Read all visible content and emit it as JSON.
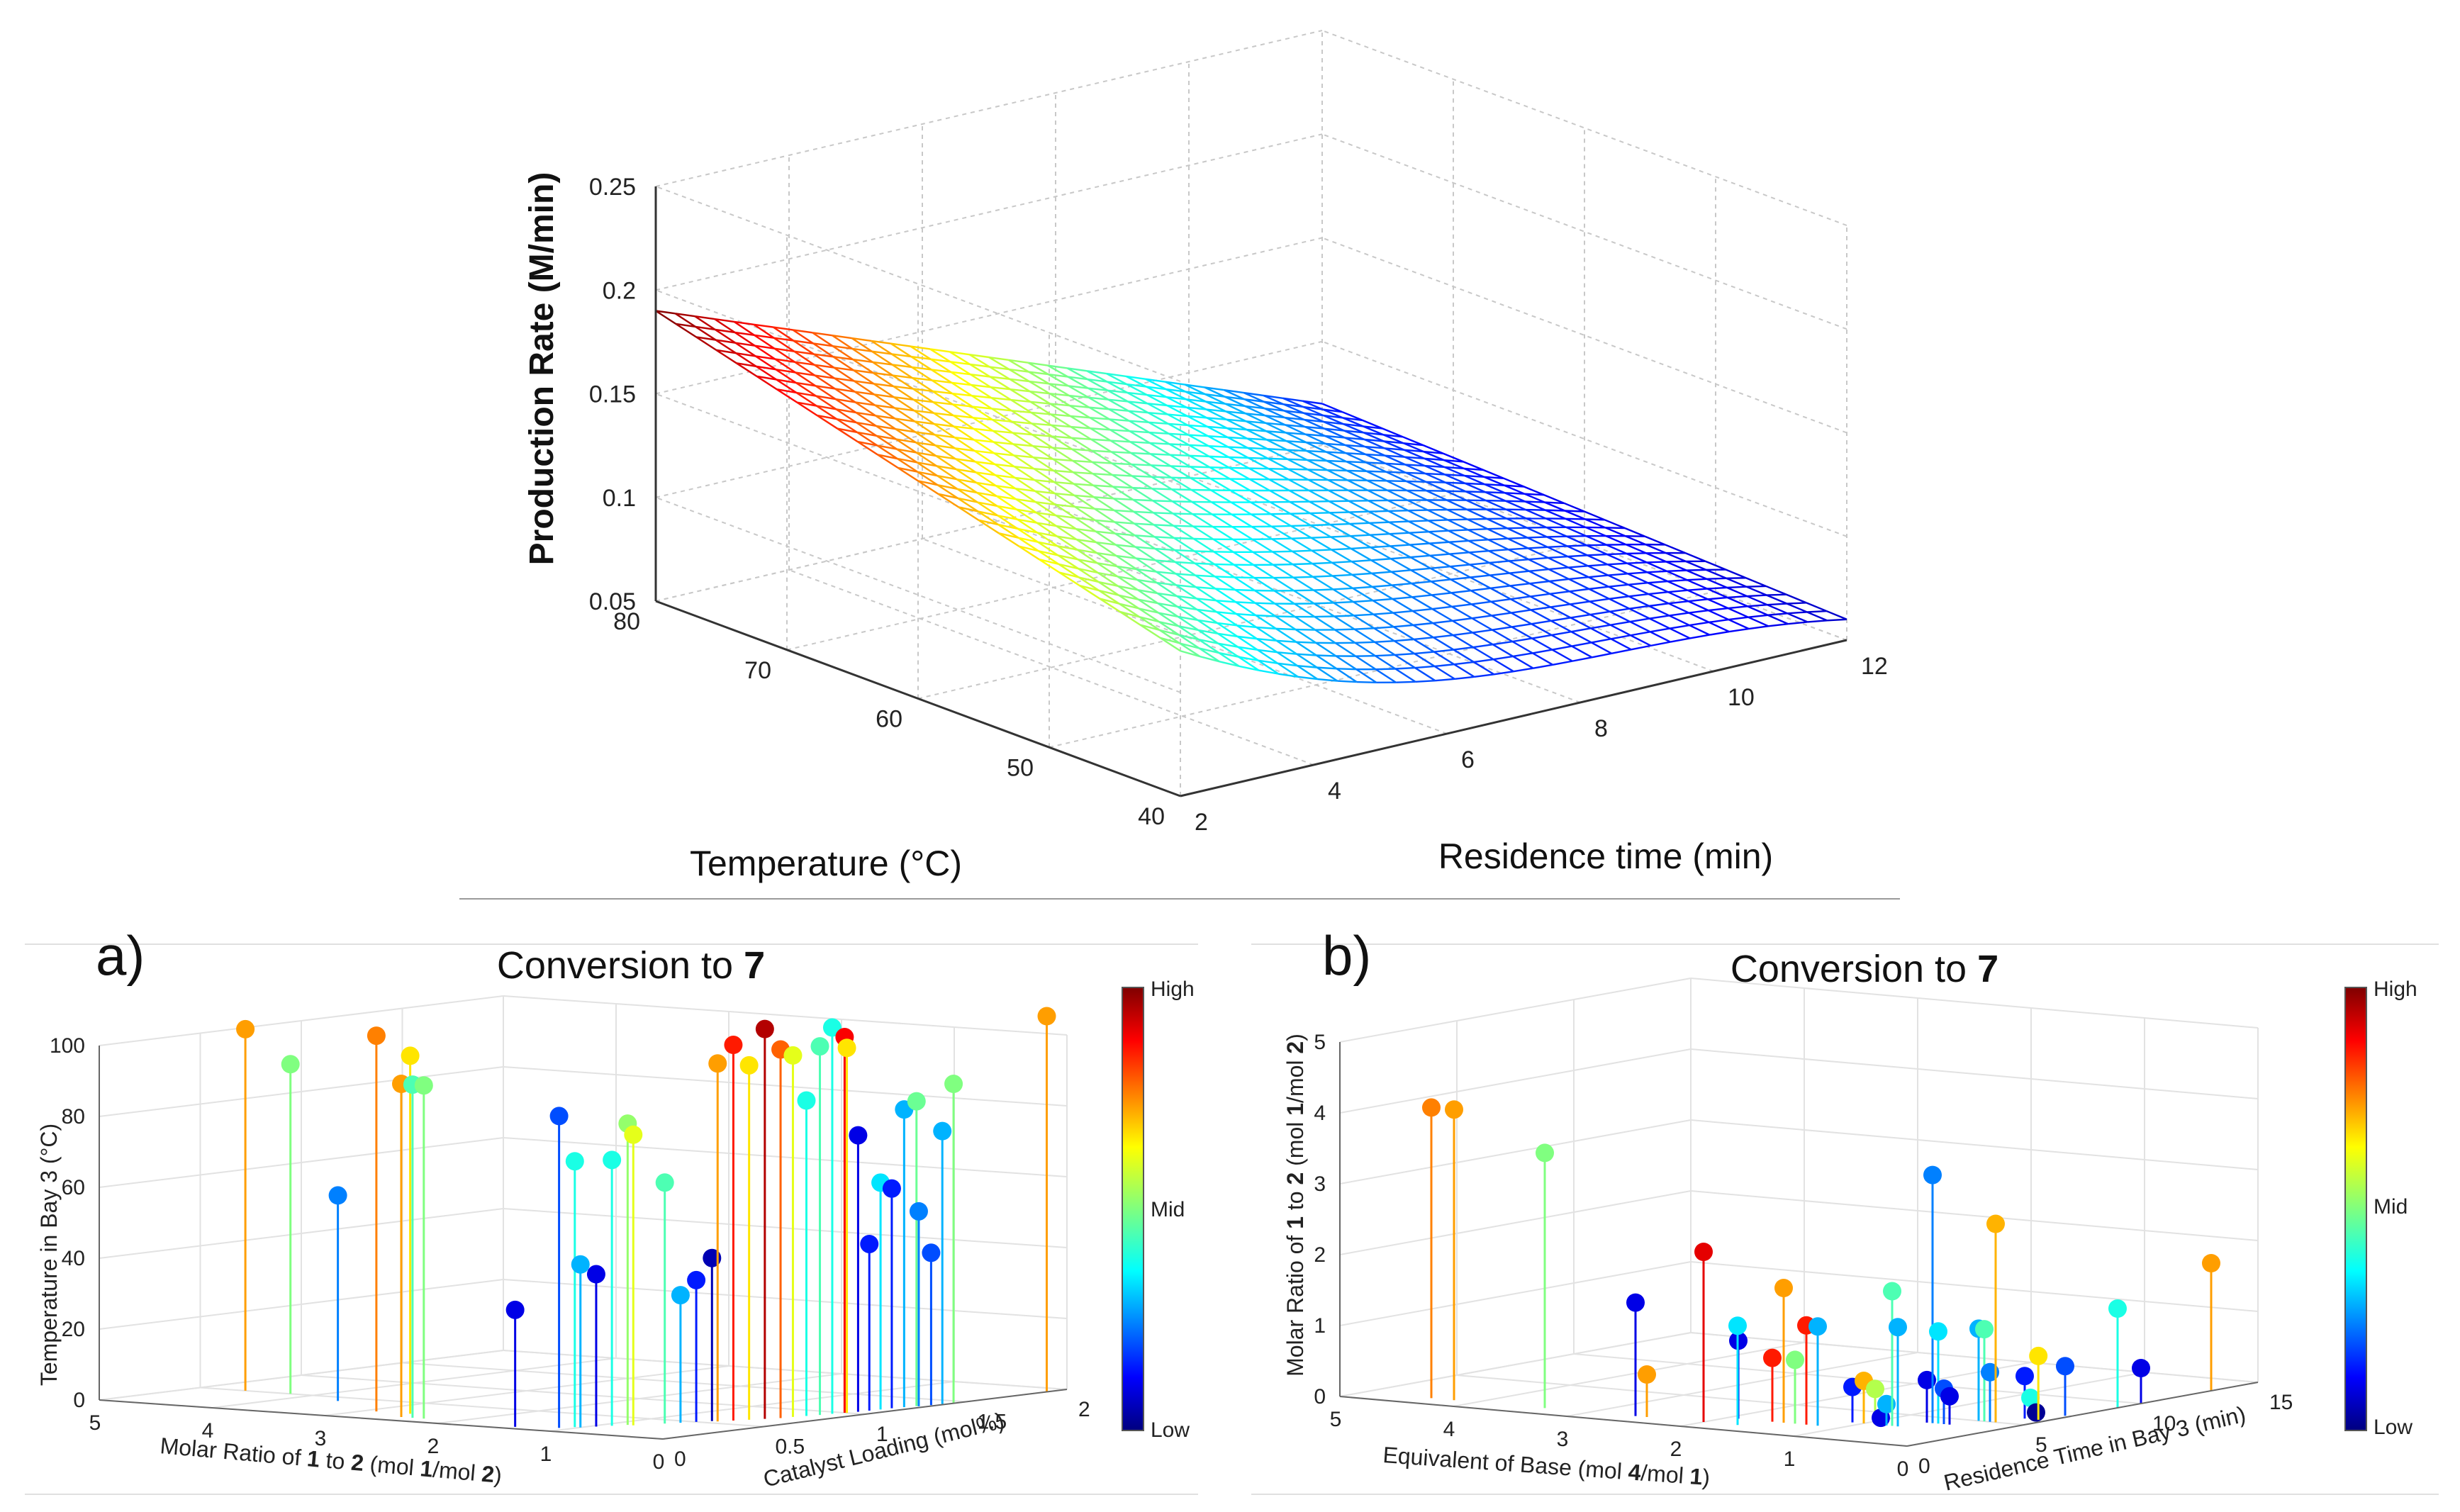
{
  "chart_data": [
    {
      "type": "surface",
      "panel_label": "",
      "title": "",
      "zlabel": "Production Rate (M/min)",
      "xlabel": "Residence time (min)",
      "ylabel": "Temperature (°C)",
      "z_ticks": [
        "0.05",
        "0.1",
        "0.15",
        "0.2",
        "0.25"
      ],
      "residence_ticks": [
        "2",
        "4",
        "6",
        "8",
        "10",
        "12"
      ],
      "temperature_ticks": [
        "40",
        "50",
        "60",
        "70",
        "80"
      ],
      "zlim": [
        0.05,
        0.25
      ],
      "xlim": [
        2,
        12
      ],
      "ylim": [
        40,
        80
      ],
      "grid": true,
      "surface_corners": [
        {
          "residence_time": 2,
          "temperature": 80,
          "rate": 0.19
        },
        {
          "residence_time": 2,
          "temperature": 40,
          "rate": 0.12
        },
        {
          "residence_time": 12,
          "temperature": 80,
          "rate": 0.07
        },
        {
          "residence_time": 12,
          "temperature": 40,
          "rate": 0.06
        }
      ],
      "colormap": "jet"
    },
    {
      "type": "scatter3d-stem",
      "panel_label": "a)",
      "title_prefix": "Conversion to ",
      "title_bold": "7",
      "zlabel": "Temperature in Bay 3 (°C)",
      "xlabel_parts": [
        "Molar Ratio of ",
        "1",
        " to ",
        "2",
        " (mol ",
        "1",
        "/mol ",
        "2",
        ")"
      ],
      "ylabel": "Catalyst Loading (mol%)",
      "z_ticks": [
        "0",
        "20",
        "40",
        "60",
        "80",
        "100"
      ],
      "molar_ratio_ticks": [
        "5",
        "4",
        "3",
        "2",
        "1",
        "0"
      ],
      "catalyst_ticks": [
        "0",
        "0.5",
        "1",
        "1.5",
        "2"
      ],
      "zlim": [
        0,
        100
      ],
      "colorbar": {
        "high": "High",
        "mid": "Mid",
        "low": "Low"
      },
      "points": [
        {
          "molar_ratio": 4.6,
          "catalyst": 0.5,
          "temperature": 102,
          "conversion": 0.72
        },
        {
          "molar_ratio": 4.2,
          "catalyst": 0.5,
          "temperature": 93,
          "conversion": 0.5
        },
        {
          "molar_ratio": 3.6,
          "catalyst": 0.4,
          "temperature": 58,
          "conversion": 0.25
        },
        {
          "molar_ratio": 2.9,
          "catalyst": 0.2,
          "temperature": 106,
          "conversion": 0.75
        },
        {
          "molar_ratio": 2.6,
          "catalyst": 0.2,
          "temperature": 101,
          "conversion": 0.65
        },
        {
          "molar_ratio": 2.5,
          "catalyst": 0.1,
          "temperature": 94,
          "conversion": 0.72
        },
        {
          "molar_ratio": 2.4,
          "catalyst": 0.1,
          "temperature": 94,
          "conversion": 0.45
        },
        {
          "molar_ratio": 2.3,
          "catalyst": 0.1,
          "temperature": 94,
          "conversion": 0.5
        },
        {
          "molar_ratio": 1.4,
          "catalyst": 0.05,
          "temperature": 33,
          "conversion": 0.1
        },
        {
          "molar_ratio": 1.1,
          "catalyst": 0.1,
          "temperature": 88,
          "conversion": 0.2
        },
        {
          "molar_ratio": 1.05,
          "catalyst": 0.15,
          "temperature": 75,
          "conversion": 0.4
        },
        {
          "molar_ratio": 1.0,
          "catalyst": 0.15,
          "temperature": 46,
          "conversion": 0.3
        },
        {
          "molar_ratio": 0.95,
          "catalyst": 0.2,
          "temperature": 43,
          "conversion": 0.1
        },
        {
          "molar_ratio": 0.9,
          "catalyst": 0.25,
          "temperature": 75,
          "conversion": 0.4
        },
        {
          "molar_ratio": 0.85,
          "catalyst": 0.3,
          "temperature": 85,
          "conversion": 0.52
        },
        {
          "molar_ratio": 0.8,
          "catalyst": 0.3,
          "temperature": 82,
          "conversion": 0.6
        },
        {
          "molar_ratio": 0.7,
          "catalyst": 0.4,
          "temperature": 68,
          "conversion": 0.45
        },
        {
          "molar_ratio": 0.65,
          "catalyst": 0.45,
          "temperature": 36,
          "conversion": 0.3
        },
        {
          "molar_ratio": 0.6,
          "catalyst": 0.5,
          "temperature": 40,
          "conversion": 0.15
        },
        {
          "molar_ratio": 0.55,
          "catalyst": 0.55,
          "temperature": 46,
          "conversion": 0.05
        },
        {
          "molar_ratio": 0.5,
          "catalyst": 0.55,
          "temperature": 101,
          "conversion": 0.72
        },
        {
          "molar_ratio": 0.45,
          "catalyst": 0.6,
          "temperature": 106,
          "conversion": 0.85
        },
        {
          "molar_ratio": 0.4,
          "catalyst": 0.65,
          "temperature": 100,
          "conversion": 0.65
        },
        {
          "molar_ratio": 0.35,
          "catalyst": 0.7,
          "temperature": 110,
          "conversion": 0.95
        },
        {
          "molar_ratio": 0.3,
          "catalyst": 0.75,
          "temperature": 104,
          "conversion": 0.78
        },
        {
          "molar_ratio": 0.28,
          "catalyst": 0.8,
          "temperature": 102,
          "conversion": 0.6
        },
        {
          "molar_ratio": 0.25,
          "catalyst": 0.85,
          "temperature": 89,
          "conversion": 0.4
        },
        {
          "molar_ratio": 0.22,
          "catalyst": 0.9,
          "temperature": 104,
          "conversion": 0.45
        },
        {
          "molar_ratio": 0.2,
          "catalyst": 0.95,
          "temperature": 109,
          "conversion": 0.4
        },
        {
          "molar_ratio": 0.18,
          "catalyst": 1.0,
          "temperature": 106,
          "conversion": 0.88
        },
        {
          "molar_ratio": 0.16,
          "catalyst": 1.0,
          "temperature": 103,
          "conversion": 0.65
        },
        {
          "molar_ratio": 0.15,
          "catalyst": 1.05,
          "temperature": 78,
          "conversion": 0.1
        },
        {
          "molar_ratio": 0.14,
          "catalyst": 1.1,
          "temperature": 47,
          "conversion": 0.15
        },
        {
          "molar_ratio": 0.13,
          "catalyst": 1.15,
          "temperature": 64,
          "conversion": 0.35
        },
        {
          "molar_ratio": 0.12,
          "catalyst": 1.2,
          "temperature": 62,
          "conversion": 0.15
        },
        {
          "molar_ratio": 0.1,
          "catalyst": 1.25,
          "temperature": 84,
          "conversion": 0.3
        },
        {
          "molar_ratio": 0.08,
          "catalyst": 1.3,
          "temperature": 86,
          "conversion": 0.48
        },
        {
          "molar_ratio": 0.06,
          "catalyst": 1.3,
          "temperature": 55,
          "conversion": 0.25
        },
        {
          "molar_ratio": 0.04,
          "catalyst": 1.35,
          "temperature": 43,
          "conversion": 0.2
        },
        {
          "molar_ratio": 0.03,
          "catalyst": 1.4,
          "temperature": 77,
          "conversion": 0.3
        },
        {
          "molar_ratio": 0.02,
          "catalyst": 1.45,
          "temperature": 90,
          "conversion": 0.5
        },
        {
          "molar_ratio": 0.0,
          "catalyst": 1.9,
          "temperature": 106,
          "conversion": 0.72
        }
      ]
    },
    {
      "type": "scatter3d-stem",
      "panel_label": "b)",
      "title_prefix": "Conversion to ",
      "title_bold": "7",
      "zlabel_parts": [
        "Molar Ratio of ",
        "1",
        " to ",
        "2",
        " (mol ",
        "1",
        "/mol ",
        "2",
        ")"
      ],
      "xlabel_parts": [
        "Equivalent of Base (mol ",
        "4",
        "/mol ",
        "1",
        ")"
      ],
      "ylabel": "Residence Time in Bay 3 (min)",
      "z_ticks": [
        "0",
        "1",
        "2",
        "3",
        "4",
        "5"
      ],
      "base_ticks": [
        "5",
        "4",
        "3",
        "2",
        "1",
        "0"
      ],
      "residence_ticks": [
        "0",
        "5",
        "10",
        "15"
      ],
      "zlim": [
        0,
        5
      ],
      "colorbar": {
        "high": "High",
        "mid": "Mid",
        "low": "Low"
      },
      "points": [
        {
          "base": 4.4,
          "residence": 1,
          "ratio": 4.1,
          "conversion": 0.75
        },
        {
          "base": 4.2,
          "residence": 1,
          "ratio": 4.1,
          "conversion": 0.72
        },
        {
          "base": 3.4,
          "residence": 1,
          "ratio": 3.6,
          "conversion": 0.5
        },
        {
          "base": 2.6,
          "residence": 1,
          "ratio": 1.6,
          "conversion": 0.1
        },
        {
          "base": 2.5,
          "residence": 1,
          "ratio": 0.6,
          "conversion": 0.72
        },
        {
          "base": 2.0,
          "residence": 1,
          "ratio": 2.4,
          "conversion": 0.9
        },
        {
          "base": 1.9,
          "residence": 2,
          "ratio": 1.1,
          "conversion": 0.1
        },
        {
          "base": 1.7,
          "residence": 1,
          "ratio": 1.4,
          "conversion": 0.35
        },
        {
          "base": 1.6,
          "residence": 2,
          "ratio": 0.9,
          "conversion": 0.85
        },
        {
          "base": 1.5,
          "residence": 2,
          "ratio": 1.9,
          "conversion": 0.72
        },
        {
          "base": 1.4,
          "residence": 2,
          "ratio": 0.9,
          "conversion": 0.5
        },
        {
          "base": 1.3,
          "residence": 2,
          "ratio": 1.4,
          "conversion": 0.85
        },
        {
          "base": 1.2,
          "residence": 2,
          "ratio": 1.4,
          "conversion": 0.3
        },
        {
          "base": 1.1,
          "residence": 3,
          "ratio": 0.5,
          "conversion": 0.15
        },
        {
          "base": 1.0,
          "residence": 3,
          "ratio": 0.6,
          "conversion": 0.7
        },
        {
          "base": 0.9,
          "residence": 3,
          "ratio": 0.5,
          "conversion": 0.55
        },
        {
          "base": 0.85,
          "residence": 3,
          "ratio": 0.1,
          "conversion": 0.1
        },
        {
          "base": 0.8,
          "residence": 3,
          "ratio": 0.3,
          "conversion": 0.3
        },
        {
          "base": 0.75,
          "residence": 3,
          "ratio": 1.9,
          "conversion": 0.45
        },
        {
          "base": 0.7,
          "residence": 3,
          "ratio": 1.4,
          "conversion": 0.3
        },
        {
          "base": 0.65,
          "residence": 4,
          "ratio": 0.6,
          "conversion": 0.1
        },
        {
          "base": 0.6,
          "residence": 4,
          "ratio": 3.5,
          "conversion": 0.25
        },
        {
          "base": 0.55,
          "residence": 4,
          "ratio": 1.3,
          "conversion": 0.35
        },
        {
          "base": 0.5,
          "residence": 4,
          "ratio": 0.5,
          "conversion": 0.2
        },
        {
          "base": 0.45,
          "residence": 4,
          "ratio": 0.4,
          "conversion": 0.1
        },
        {
          "base": 0.4,
          "residence": 5,
          "ratio": 1.3,
          "conversion": 0.3
        },
        {
          "base": 0.35,
          "residence": 5,
          "ratio": 1.3,
          "conversion": 0.45
        },
        {
          "base": 0.3,
          "residence": 5,
          "ratio": 0.7,
          "conversion": 0.25
        },
        {
          "base": 0.25,
          "residence": 5,
          "ratio": 2.8,
          "conversion": 0.7
        },
        {
          "base": 0.2,
          "residence": 6,
          "ratio": 0.6,
          "conversion": 0.15
        },
        {
          "base": 0.15,
          "residence": 6,
          "ratio": 0.3,
          "conversion": 0.4
        },
        {
          "base": 0.1,
          "residence": 6,
          "ratio": 0.1,
          "conversion": 0.02
        },
        {
          "base": 0.08,
          "residence": 6,
          "ratio": 0.9,
          "conversion": 0.65
        },
        {
          "base": 0.05,
          "residence": 7,
          "ratio": 0.7,
          "conversion": 0.2
        },
        {
          "base": 0.0,
          "residence": 9,
          "ratio": 1.4,
          "conversion": 0.4
        },
        {
          "base": 0.0,
          "residence": 10,
          "ratio": 0.5,
          "conversion": 0.1
        },
        {
          "base": 0.0,
          "residence": 13,
          "ratio": 1.8,
          "conversion": 0.72
        }
      ]
    }
  ],
  "colors": {
    "background": "#ffffff",
    "divider": "#9a9a9a",
    "grid": "#c8c8c8"
  }
}
